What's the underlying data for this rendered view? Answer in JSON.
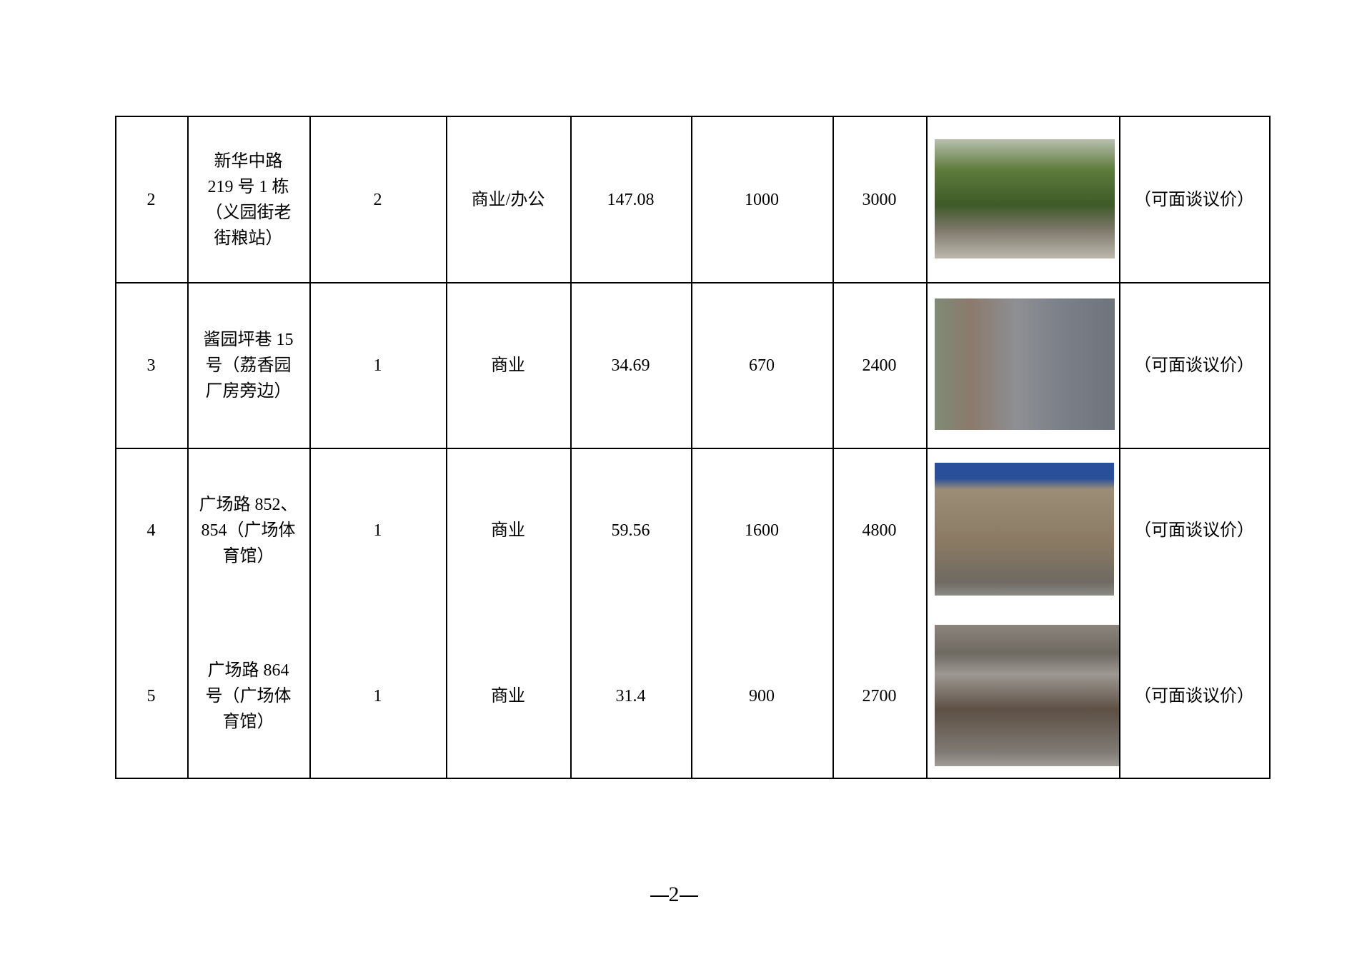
{
  "table": {
    "rows": [
      {
        "no": "2",
        "address_lines": [
          "新华中路",
          "219 号 1 栋",
          "（义园街老",
          "街粮站）"
        ],
        "count": "2",
        "use": "商业/办公",
        "area": "147.08",
        "price1": "1000",
        "price2": "3000",
        "photo": "tree-lined-building-photo",
        "note": "（可面谈议价）"
      },
      {
        "no": "3",
        "address_lines": [
          "酱园坪巷 15",
          "号（荔香园",
          "厂房旁边）"
        ],
        "count": "1",
        "use": "商业",
        "area": "34.69",
        "price1": "670",
        "price2": "2400",
        "photo": "shuttered-storefronts-street-photo",
        "note": "（可面谈议价）"
      },
      {
        "no": "4",
        "address_lines": [
          "广场路 852、",
          "854（广场体",
          "育馆）"
        ],
        "count": "1",
        "use": "商业",
        "area": "59.56",
        "price1": "1600",
        "price2": "4800",
        "photo": "shuttered-shop-with-signboard-photo",
        "note": "（可面谈议价）"
      },
      {
        "no": "5",
        "address_lines": [
          "广场路 864",
          "号（广场体",
          "育馆）"
        ],
        "count": "1",
        "use": "商业",
        "area": "31.4",
        "price1": "900",
        "price2": "2700",
        "photo": "glass-door-shopfront-photo",
        "note": "（可面谈议价）"
      }
    ]
  },
  "page_number": "2"
}
